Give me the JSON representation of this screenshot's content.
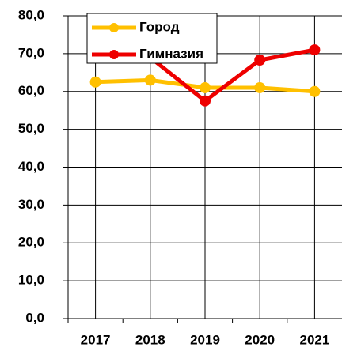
{
  "chart_data": {
    "type": "line",
    "categories": [
      "2017",
      "2018",
      "2019",
      "2020",
      "2021"
    ],
    "series": [
      {
        "name": "Город",
        "color": "#ffc000",
        "values": [
          62.5,
          63,
          61,
          61,
          60
        ]
      },
      {
        "name": "Гимназия",
        "color": "#ee0000",
        "values": [
          70,
          69,
          57.5,
          68.3,
          71
        ]
      }
    ],
    "ylim": [
      0,
      80
    ],
    "yticks": [
      {
        "value": 0,
        "label": "0,0"
      },
      {
        "value": 10,
        "label": "10,0"
      },
      {
        "value": 20,
        "label": "20,0"
      },
      {
        "value": 30,
        "label": "30,0"
      },
      {
        "value": 40,
        "label": "40,0"
      },
      {
        "value": 50,
        "label": "50,0"
      },
      {
        "value": 60,
        "label": "60,0"
      },
      {
        "value": 70,
        "label": "70,0"
      },
      {
        "value": 80,
        "label": "80,0"
      }
    ],
    "grid": true,
    "legend": "top"
  }
}
